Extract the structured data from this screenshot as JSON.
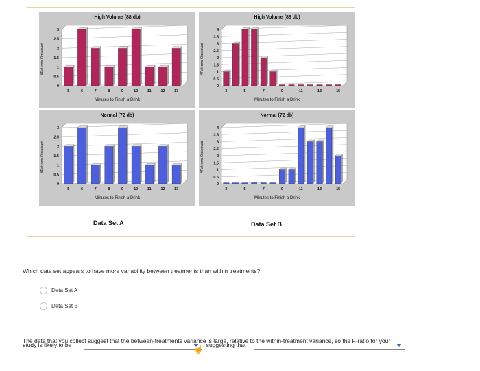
{
  "charts": [
    {
      "id": "a-high",
      "title": "High Volume (88 db)",
      "xlabel": "Minutes to Finish a Drink",
      "ylabel": "#Patrons Observed"
    },
    {
      "id": "a-normal",
      "title": "Normal (72 db)",
      "xlabel": "Minutes to Finish a Drink",
      "ylabel": "#Patrons Observed"
    },
    {
      "id": "b-high",
      "title": "High Volume (88 db)",
      "xlabel": "Minutes to Finish a Drink",
      "ylabel": "#Patrons Observed"
    },
    {
      "id": "b-normal",
      "title": "Normal (72 db)",
      "xlabel": "Minutes to Finish a Drink",
      "ylabel": "#Patrons Observed"
    }
  ],
  "chart_data": [
    {
      "type": "bar",
      "title": "High Volume (88 db)",
      "xlabel": "Minutes to Finish a Drink",
      "ylabel": "#Patrons Observed",
      "x": [
        5,
        6,
        7,
        8,
        9,
        10,
        11,
        12,
        13
      ],
      "values": [
        1,
        3,
        2,
        1,
        2,
        3,
        1,
        1,
        2
      ],
      "ylim": [
        0,
        3
      ],
      "yticks": [
        "0",
        "0.5",
        "1",
        "1.5",
        "2",
        "2.5",
        "3"
      ],
      "xticks": [
        "5",
        "6",
        "7",
        "8",
        "9",
        "10",
        "11",
        "12",
        "13"
      ],
      "color": "#b2245a"
    },
    {
      "type": "bar",
      "title": "Normal (72 db)",
      "xlabel": "Minutes to Finish a Drink",
      "ylabel": "#Patrons Observed",
      "x": [
        5,
        6,
        7,
        8,
        9,
        10,
        11,
        12,
        13
      ],
      "values": [
        2,
        3,
        1,
        2,
        3,
        2,
        1,
        2,
        1
      ],
      "ylim": [
        0,
        3
      ],
      "yticks": [
        "0",
        "0.5",
        "1",
        "1.5",
        "2",
        "2.5",
        "3"
      ],
      "xticks": [
        "5",
        "6",
        "7",
        "8",
        "9",
        "10",
        "11",
        "12",
        "13"
      ],
      "color": "#4c5fe0"
    },
    {
      "type": "bar",
      "title": "High Volume (88 db)",
      "xlabel": "Minutes to Finish a Drink",
      "ylabel": "#Patrons Observed",
      "x": [
        3,
        4,
        5,
        6,
        7,
        8,
        9,
        10,
        11,
        12,
        13,
        14,
        15
      ],
      "values": [
        1,
        3,
        4,
        4,
        2,
        1,
        0,
        0,
        0,
        0,
        0,
        0,
        0
      ],
      "ylim": [
        0,
        4
      ],
      "yticks": [
        "0",
        "0.5",
        "1",
        "1.5",
        "2",
        "2.5",
        "3",
        "3.5",
        "4"
      ],
      "xticks": [
        "3",
        "5",
        "7",
        "9",
        "11",
        "13",
        "15"
      ],
      "color": "#b2245a"
    },
    {
      "type": "bar",
      "title": "Normal (72 db)",
      "xlabel": "Minutes to Finish a Drink",
      "ylabel": "#Patrons Observed",
      "x": [
        3,
        4,
        5,
        6,
        7,
        8,
        9,
        10,
        11,
        12,
        13,
        14,
        15
      ],
      "values": [
        0,
        0,
        0,
        0,
        0,
        0,
        1,
        1,
        4,
        3,
        3,
        4,
        2
      ],
      "ylim": [
        0,
        4
      ],
      "yticks": [
        "0",
        "0.5",
        "1",
        "1.5",
        "2",
        "2.5",
        "3",
        "3.5",
        "4"
      ],
      "xticks": [
        "3",
        "5",
        "7",
        "9",
        "11",
        "13",
        "15"
      ],
      "color": "#4c5fe0"
    }
  ],
  "sets": {
    "a": "Data Set A",
    "b": "Data Set B"
  },
  "question": "Which data set appears to have more variability between treatments than within treatments?",
  "options": [
    "Data Set A",
    "Data Set B"
  ],
  "answer": {
    "line1": "The data that you collect suggest that the between-treatments variance is large, relative to the within-treatment variance, so the F-ratio for your",
    "line2a": "study is likely to be",
    "line2b": ", suggesting that"
  },
  "colors": {
    "high": "#b2245a",
    "normal": "#4c5fe0",
    "panel": "#c9c9c9"
  }
}
